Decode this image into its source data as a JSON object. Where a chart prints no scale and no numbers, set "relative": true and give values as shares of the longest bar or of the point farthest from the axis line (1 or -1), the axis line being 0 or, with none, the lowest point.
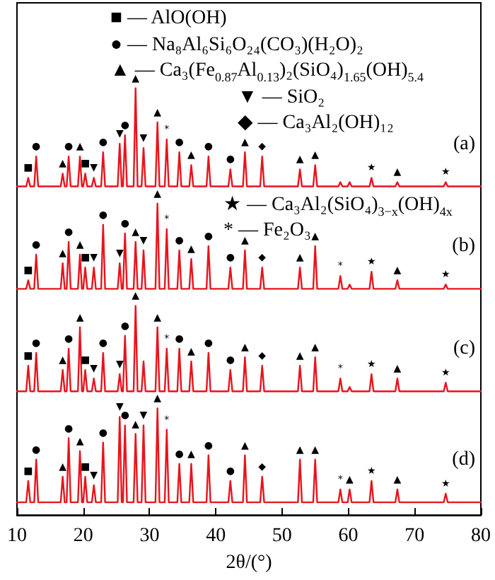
{
  "chart_data": {
    "type": "line",
    "relative": true,
    "xlabel": "2θ/(°)",
    "xlim": [
      10,
      80
    ],
    "xticks": [
      10,
      20,
      30,
      40,
      50,
      60,
      70,
      80
    ],
    "tick_labels": "x",
    "grid": false,
    "legend": false,
    "marker": "none",
    "line_style": "solid",
    "x": [
      10,
      11.4,
      11.7,
      12.0,
      12.6,
      12.9,
      13.2,
      16.6,
      16.9,
      17.2,
      17.5,
      17.8,
      18.1,
      19.2,
      19.5,
      19.8,
      20.0,
      20.3,
      20.6,
      21.3,
      21.6,
      21.9,
      22.7,
      23.0,
      23.3,
      25.2,
      25.5,
      25.8,
      26.0,
      26.3,
      26.6,
      27.6,
      27.9,
      28.2,
      28.8,
      29.1,
      29.4,
      30.9,
      31.2,
      31.5,
      32.3,
      32.6,
      32.9,
      34.2,
      34.5,
      34.8,
      36.0,
      36.3,
      36.6,
      38.6,
      38.9,
      39.2,
      41.9,
      42.2,
      42.5,
      44.1,
      44.4,
      44.7,
      46.7,
      47.0,
      47.3,
      52.4,
      52.7,
      53.0,
      54.7,
      55.0,
      55.3,
      58.5,
      58.8,
      59.1,
      59.9,
      60.2,
      60.5,
      63.2,
      63.5,
      63.8,
      67.1,
      67.4,
      67.7,
      74.4,
      74.7,
      75.0,
      80
    ],
    "series": [
      {
        "name": "(a)",
        "color": "#e8141c",
        "values": [
          0.77,
          0.77,
          0.79,
          0.77,
          0.77,
          0.84,
          0.77,
          0.77,
          0.8,
          0.77,
          0.77,
          0.84,
          0.77,
          0.77,
          0.84,
          0.77,
          0.77,
          0.8,
          0.77,
          0.77,
          0.79,
          0.77,
          0.77,
          0.85,
          0.77,
          0.77,
          0.87,
          0.77,
          0.77,
          0.89,
          0.77,
          0.77,
          1,
          0.77,
          0.77,
          0.86,
          0.77,
          0.77,
          0.92,
          0.77,
          0.77,
          0.88,
          0.77,
          0.77,
          0.85,
          0.77,
          0.77,
          0.82,
          0.77,
          0.77,
          0.84,
          0.77,
          0.77,
          0.81,
          0.77,
          0.77,
          0.85,
          0.77,
          0.77,
          0.84,
          0.77,
          0.77,
          0.81,
          0.77,
          0.77,
          0.82,
          0.77,
          0.77,
          0.78,
          0.77,
          0.77,
          0.78,
          0.77,
          0.77,
          0.79,
          0.77,
          0.77,
          0.78,
          0.77,
          0.77,
          0.78,
          0.77,
          0.77
        ]
      },
      {
        "name": "(b)",
        "color": "#e8141c",
        "values": [
          0.53,
          0.53,
          0.55,
          0.53,
          0.53,
          0.61,
          0.53,
          0.53,
          0.59,
          0.53,
          0.53,
          0.64,
          0.53,
          0.53,
          0.61,
          0.53,
          0.53,
          0.58,
          0.53,
          0.53,
          0.58,
          0.53,
          0.53,
          0.68,
          0.53,
          0.53,
          0.59,
          0.53,
          0.53,
          0.66,
          0.53,
          0.53,
          0.64,
          0.53,
          0.53,
          0.62,
          0.53,
          0.53,
          0.73,
          0.53,
          0.53,
          0.67,
          0.53,
          0.53,
          0.62,
          0.53,
          0.53,
          0.6,
          0.53,
          0.53,
          0.63,
          0.53,
          0.53,
          0.58,
          0.53,
          0.53,
          0.62,
          0.53,
          0.53,
          0.58,
          0.53,
          0.53,
          0.58,
          0.53,
          0.53,
          0.63,
          0.53,
          0.53,
          0.56,
          0.53,
          0.53,
          0.54,
          0.53,
          0.53,
          0.57,
          0.53,
          0.53,
          0.55,
          0.53,
          0.53,
          0.54,
          0.53,
          0.53
        ]
      },
      {
        "name": "(c)",
        "color": "#e8141c",
        "values": [
          0.29,
          0.29,
          0.35,
          0.29,
          0.29,
          0.38,
          0.29,
          0.29,
          0.34,
          0.29,
          0.29,
          0.39,
          0.29,
          0.29,
          0.44,
          0.29,
          0.29,
          0.34,
          0.29,
          0.29,
          0.32,
          0.29,
          0.29,
          0.38,
          0.29,
          0.29,
          0.33,
          0.29,
          0.29,
          0.42,
          0.29,
          0.29,
          0.49,
          0.29,
          0.29,
          0.36,
          0.29,
          0.29,
          0.44,
          0.29,
          0.29,
          0.39,
          0.29,
          0.29,
          0.39,
          0.29,
          0.29,
          0.36,
          0.29,
          0.29,
          0.38,
          0.29,
          0.29,
          0.34,
          0.29,
          0.29,
          0.37,
          0.29,
          0.29,
          0.35,
          0.29,
          0.29,
          0.35,
          0.29,
          0.29,
          0.37,
          0.29,
          0.29,
          0.32,
          0.29,
          0.29,
          0.3,
          0.29,
          0.29,
          0.33,
          0.29,
          0.29,
          0.32,
          0.29,
          0.29,
          0.31,
          0.29,
          0.29
        ]
      },
      {
        "name": "(d)",
        "color": "#e8141c",
        "values": [
          0.03,
          0.03,
          0.08,
          0.03,
          0.03,
          0.13,
          0.03,
          0.03,
          0.09,
          0.03,
          0.03,
          0.18,
          0.03,
          0.03,
          0.15,
          0.03,
          0.03,
          0.09,
          0.03,
          0.03,
          0.07,
          0.03,
          0.03,
          0.17,
          0.03,
          0.03,
          0.23,
          0.03,
          0.03,
          0.21,
          0.03,
          0.03,
          0.19,
          0.03,
          0.03,
          0.21,
          0.03,
          0.03,
          0.25,
          0.03,
          0.03,
          0.2,
          0.03,
          0.03,
          0.12,
          0.03,
          0.03,
          0.12,
          0.03,
          0.03,
          0.14,
          0.03,
          0.03,
          0.08,
          0.03,
          0.03,
          0.14,
          0.03,
          0.03,
          0.09,
          0.03,
          0.03,
          0.13,
          0.03,
          0.03,
          0.13,
          0.03,
          0.03,
          0.06,
          0.03,
          0.03,
          0.06,
          0.03,
          0.03,
          0.08,
          0.03,
          0.03,
          0.06,
          0.03,
          0.03,
          0.05,
          0.03,
          0.03
        ]
      }
    ],
    "annotations": [
      "■ — AlO(OH)",
      "● — Na₈Al₆Si₆O₂₄(CO₃)(H₂O)₂",
      "▲ — Ca₃(Fe$_{0.87}$Al$_{0.13}$)₂(SiO₄)$_{1.65}$(OH)$_{5.4}$",
      "▼ — SiO₂",
      "◆ — Ca₃Al₂(OH)₁₂",
      "★ — Ca₃Al₂(SiO₄)$_{3−x}$(OH)$_{4x}$",
      "* — Fe₂O₃",
      {
        "text": "■",
        "x": 11.7,
        "y": 0.79
      },
      {
        "text": "●",
        "x": 12.9,
        "y": 0.84
      },
      {
        "text": "▲",
        "x": 16.9,
        "y": 0.8
      },
      {
        "text": "●",
        "x": 17.8,
        "y": 0.84
      },
      {
        "text": "▲",
        "x": 19.5,
        "y": 0.84
      },
      {
        "text": "■",
        "x": 20.3,
        "y": 0.8
      },
      {
        "text": "▼",
        "x": 21.6,
        "y": 0.79
      },
      {
        "text": "●",
        "x": 23.0,
        "y": 0.85
      },
      {
        "text": "▼",
        "x": 25.5,
        "y": 0.87
      },
      {
        "text": "●",
        "x": 26.3,
        "y": 0.89
      },
      {
        "text": "▲",
        "x": 27.9,
        "y": 1
      },
      {
        "text": "▼",
        "x": 29.1,
        "y": 0.86
      },
      {
        "text": "▲",
        "x": 31.2,
        "y": 0.92
      },
      {
        "text": "*",
        "x": 32.6,
        "y": 0.88
      },
      {
        "text": "●",
        "x": 34.5,
        "y": 0.85
      },
      {
        "text": "▲",
        "x": 36.3,
        "y": 0.82
      },
      {
        "text": "●",
        "x": 38.9,
        "y": 0.84
      },
      {
        "text": "●",
        "x": 42.2,
        "y": 0.81
      },
      {
        "text": "▲",
        "x": 44.4,
        "y": 0.85
      },
      {
        "text": "◆",
        "x": 47.0,
        "y": 0.84
      },
      {
        "text": "▲",
        "x": 52.7,
        "y": 0.81
      },
      {
        "text": "▲",
        "x": 55.0,
        "y": 0.82
      },
      {
        "text": "★",
        "x": 63.5,
        "y": 0.79
      },
      {
        "text": "▲",
        "x": 67.4,
        "y": 0.78
      },
      {
        "text": "★",
        "x": 74.7,
        "y": 0.78
      },
      {
        "text": "■",
        "x": 11.7,
        "y": 0.55
      },
      {
        "text": "●",
        "x": 12.9,
        "y": 0.61
      },
      {
        "text": "▲",
        "x": 16.9,
        "y": 0.59
      },
      {
        "text": "●",
        "x": 17.8,
        "y": 0.64
      },
      {
        "text": "▲",
        "x": 19.5,
        "y": 0.61
      },
      {
        "text": "■",
        "x": 20.3,
        "y": 0.58
      },
      {
        "text": "▼",
        "x": 21.6,
        "y": 0.58
      },
      {
        "text": "●",
        "x": 23.0,
        "y": 0.68
      },
      {
        "text": "▼",
        "x": 25.5,
        "y": 0.59
      },
      {
        "text": "●",
        "x": 26.3,
        "y": 0.66
      },
      {
        "text": "▲",
        "x": 27.9,
        "y": 0.64
      },
      {
        "text": "▼",
        "x": 29.1,
        "y": 0.62
      },
      {
        "text": "▲",
        "x": 31.2,
        "y": 0.73
      },
      {
        "text": "*",
        "x": 32.6,
        "y": 0.67
      },
      {
        "text": "●",
        "x": 34.5,
        "y": 0.62
      },
      {
        "text": "▲",
        "x": 36.3,
        "y": 0.6
      },
      {
        "text": "●",
        "x": 38.9,
        "y": 0.63
      },
      {
        "text": "●",
        "x": 42.2,
        "y": 0.58
      },
      {
        "text": "▲",
        "x": 44.4,
        "y": 0.62
      },
      {
        "text": "◆",
        "x": 47.0,
        "y": 0.58
      },
      {
        "text": "▲",
        "x": 52.7,
        "y": 0.58
      },
      {
        "text": "▲",
        "x": 55.0,
        "y": 0.63
      },
      {
        "text": "*",
        "x": 58.8,
        "y": 0.56
      },
      {
        "text": "★",
        "x": 63.5,
        "y": 0.57
      },
      {
        "text": "▲",
        "x": 67.4,
        "y": 0.55
      },
      {
        "text": "★",
        "x": 74.7,
        "y": 0.54
      },
      {
        "text": "■",
        "x": 11.7,
        "y": 0.35
      },
      {
        "text": "●",
        "x": 12.9,
        "y": 0.38
      },
      {
        "text": "▲",
        "x": 16.9,
        "y": 0.34
      },
      {
        "text": "●",
        "x": 17.8,
        "y": 0.39
      },
      {
        "text": "▲",
        "x": 19.5,
        "y": 0.44
      },
      {
        "text": "■",
        "x": 20.3,
        "y": 0.34
      },
      {
        "text": "▼",
        "x": 21.6,
        "y": 0.32
      },
      {
        "text": "●",
        "x": 23.0,
        "y": 0.38
      },
      {
        "text": "▼",
        "x": 25.5,
        "y": 0.33
      },
      {
        "text": "●",
        "x": 26.3,
        "y": 0.42
      },
      {
        "text": "▲",
        "x": 27.9,
        "y": 0.49
      },
      {
        "text": "▲",
        "x": 31.2,
        "y": 0.44
      },
      {
        "text": "*",
        "x": 32.6,
        "y": 0.39
      },
      {
        "text": "●",
        "x": 34.5,
        "y": 0.39
      },
      {
        "text": "▲",
        "x": 36.3,
        "y": 0.36
      },
      {
        "text": "●",
        "x": 38.9,
        "y": 0.38
      },
      {
        "text": "●",
        "x": 42.2,
        "y": 0.34
      },
      {
        "text": "▲",
        "x": 44.4,
        "y": 0.37
      },
      {
        "text": "◆",
        "x": 47.0,
        "y": 0.35
      },
      {
        "text": "▲",
        "x": 52.7,
        "y": 0.35
      },
      {
        "text": "▲",
        "x": 55.0,
        "y": 0.37
      },
      {
        "text": "*",
        "x": 58.8,
        "y": 0.32
      },
      {
        "text": "★",
        "x": 63.5,
        "y": 0.33
      },
      {
        "text": "▲",
        "x": 67.4,
        "y": 0.32
      },
      {
        "text": "★",
        "x": 74.7,
        "y": 0.31
      },
      {
        "text": "■",
        "x": 11.7,
        "y": 0.08
      },
      {
        "text": "●",
        "x": 12.9,
        "y": 0.13
      },
      {
        "text": "▲",
        "x": 16.9,
        "y": 0.09
      },
      {
        "text": "●",
        "x": 17.8,
        "y": 0.18
      },
      {
        "text": "▲",
        "x": 19.5,
        "y": 0.15
      },
      {
        "text": "■",
        "x": 20.3,
        "y": 0.09
      },
      {
        "text": "▼",
        "x": 21.6,
        "y": 0.07
      },
      {
        "text": "●",
        "x": 23.0,
        "y": 0.17
      },
      {
        "text": "▼",
        "x": 25.5,
        "y": 0.23
      },
      {
        "text": "●",
        "x": 26.3,
        "y": 0.21
      },
      {
        "text": "▲",
        "x": 27.9,
        "y": 0.19
      },
      {
        "text": "▼",
        "x": 29.1,
        "y": 0.21
      },
      {
        "text": "▲",
        "x": 31.2,
        "y": 0.25
      },
      {
        "text": "*",
        "x": 32.6,
        "y": 0.2
      },
      {
        "text": "●",
        "x": 34.5,
        "y": 0.12
      },
      {
        "text": "▲",
        "x": 36.3,
        "y": 0.12
      },
      {
        "text": "●",
        "x": 38.9,
        "y": 0.14
      },
      {
        "text": "●",
        "x": 42.2,
        "y": 0.08
      },
      {
        "text": "▲",
        "x": 44.4,
        "y": 0.14
      },
      {
        "text": "◆",
        "x": 47.0,
        "y": 0.09
      },
      {
        "text": "▲",
        "x": 52.7,
        "y": 0.13
      },
      {
        "text": "▲",
        "x": 55.0,
        "y": 0.13
      },
      {
        "text": "*",
        "x": 58.8,
        "y": 0.06
      },
      {
        "text": "▲",
        "x": 60.2,
        "y": 0.06
      },
      {
        "text": "★",
        "x": 63.5,
        "y": 0.08
      },
      {
        "text": "▲",
        "x": 67.4,
        "y": 0.06
      },
      {
        "text": "★",
        "x": 74.7,
        "y": 0.05
      }
    ]
  }
}
